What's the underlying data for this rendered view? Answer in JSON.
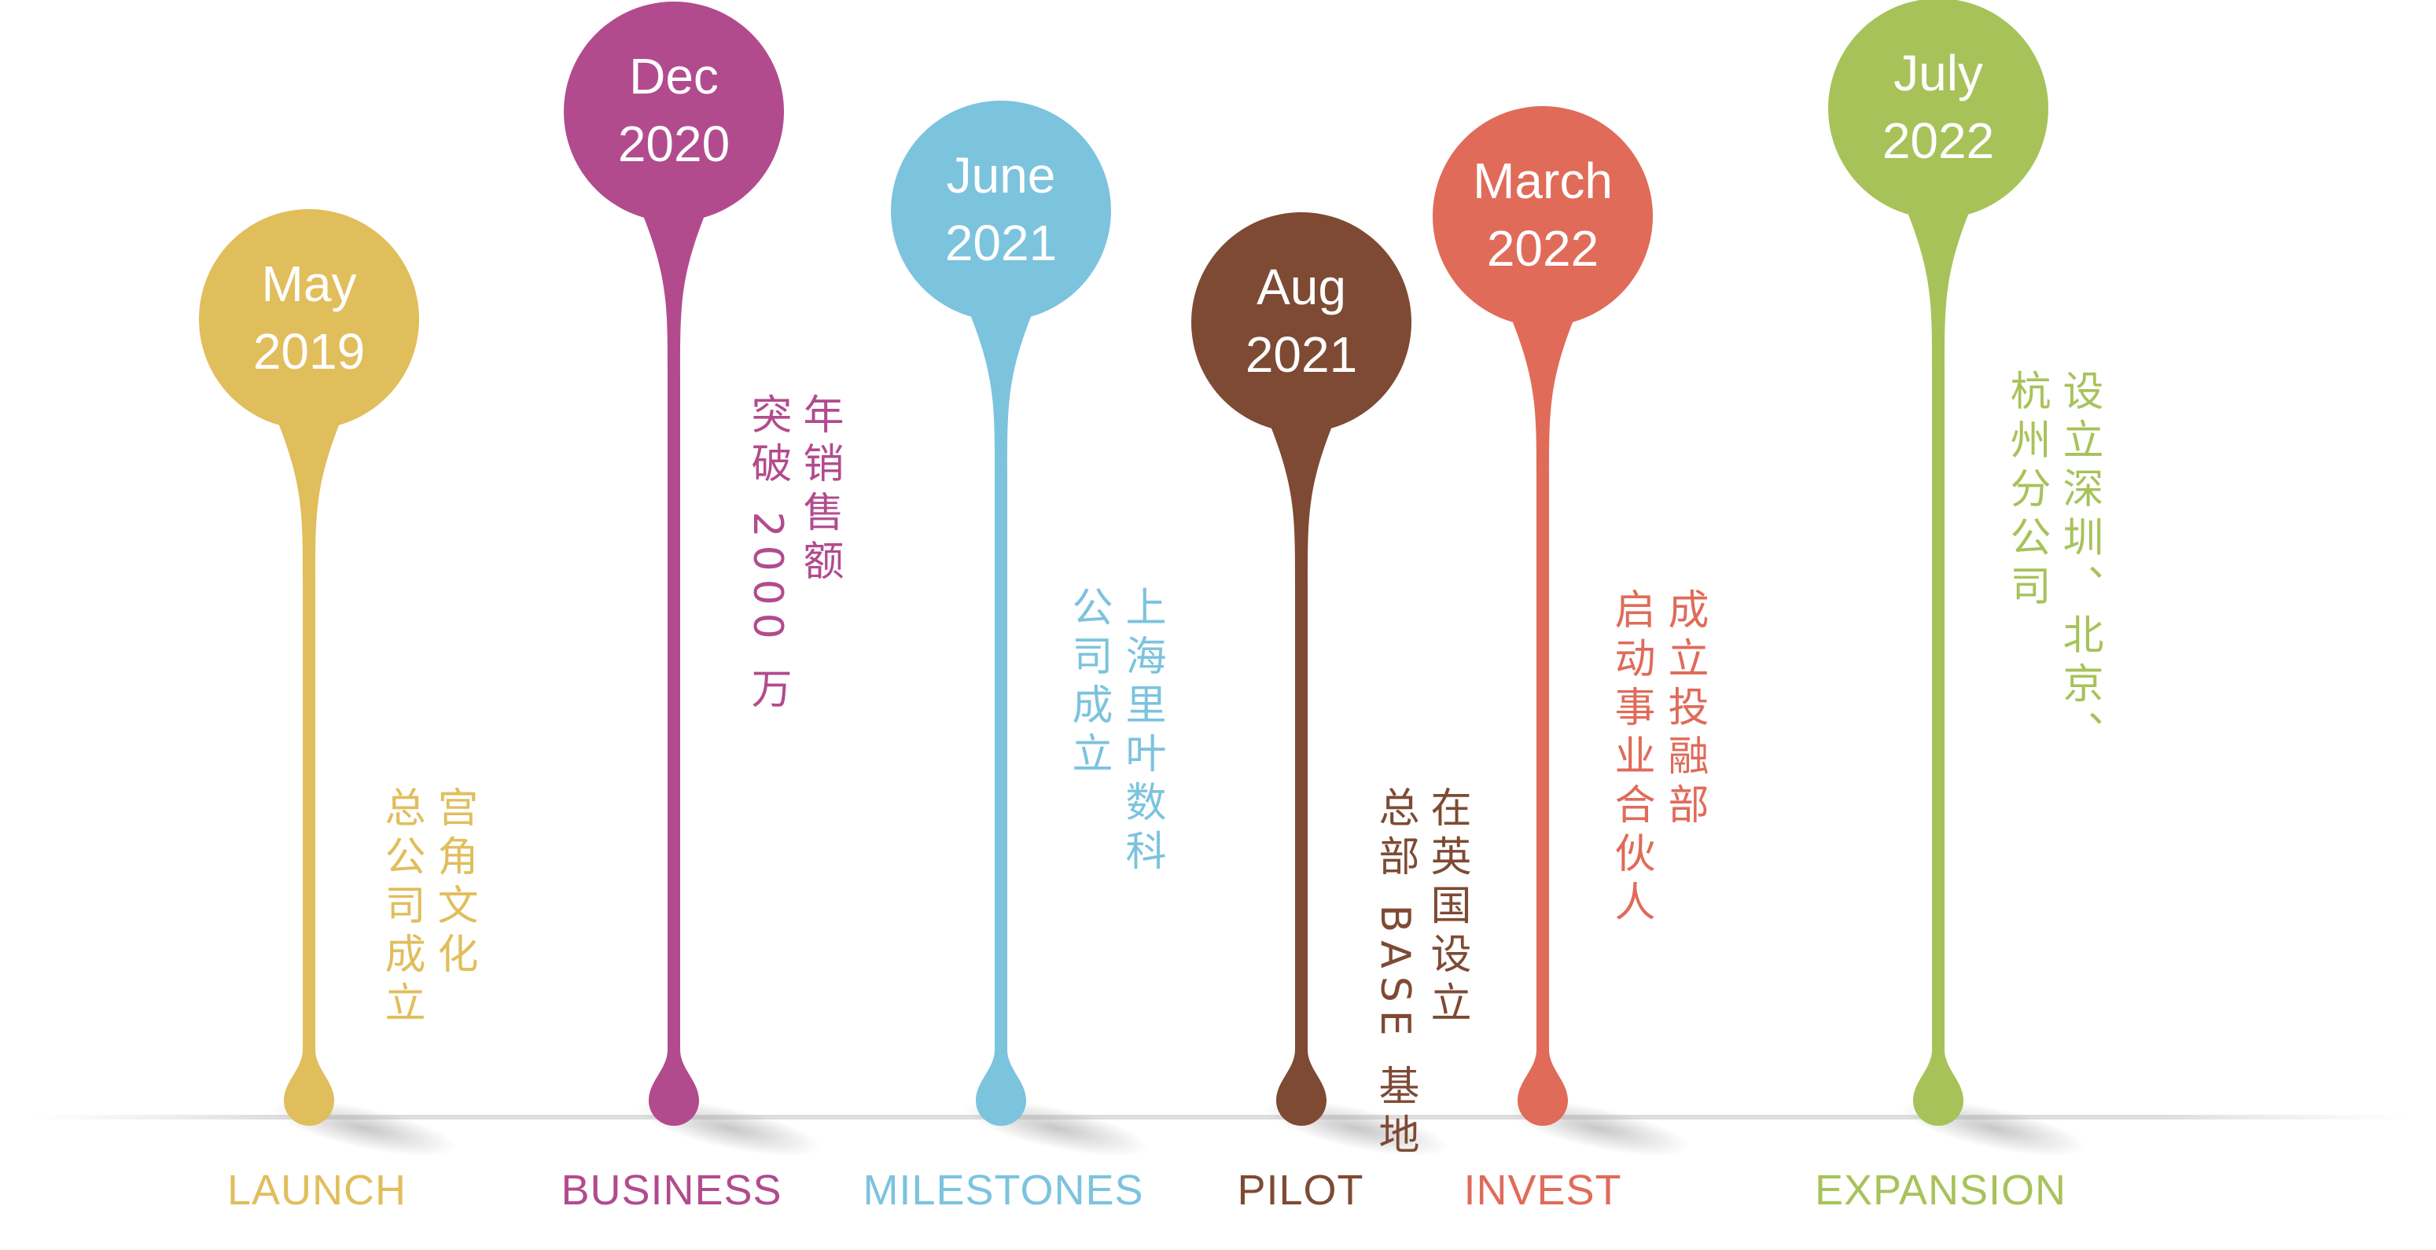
{
  "events": [
    {
      "month": "May",
      "year": "2019",
      "category": "LAUNCH",
      "lines": [
        "宫角文化",
        "总公司成立"
      ],
      "color": "#E1BE5C"
    },
    {
      "month": "Dec",
      "year": "2020",
      "category": "BUSINESS",
      "lines": [
        "年销售额",
        "突破 2000 万"
      ],
      "color": "#B24B8E"
    },
    {
      "month": "June",
      "year": "2021",
      "category": "MILESTONES",
      "lines": [
        "上海里叶数科",
        "公司成立"
      ],
      "color": "#7CC3DE"
    },
    {
      "month": "Aug",
      "year": "2021",
      "category": "PILOT",
      "lines": [
        "在英国设立",
        "总部 BASE 基地"
      ],
      "color": "#7E4A33"
    },
    {
      "month": "March",
      "year": "2022",
      "category": "INVEST",
      "lines": [
        "成立投融部",
        "启动事业合伙人"
      ],
      "color": "#E06B59"
    },
    {
      "month": "July",
      "year": "2022",
      "category": "EXPANSION",
      "lines": [
        "设立深圳、北京、",
        "杭州分公司"
      ],
      "color": "#A8C25A"
    }
  ]
}
